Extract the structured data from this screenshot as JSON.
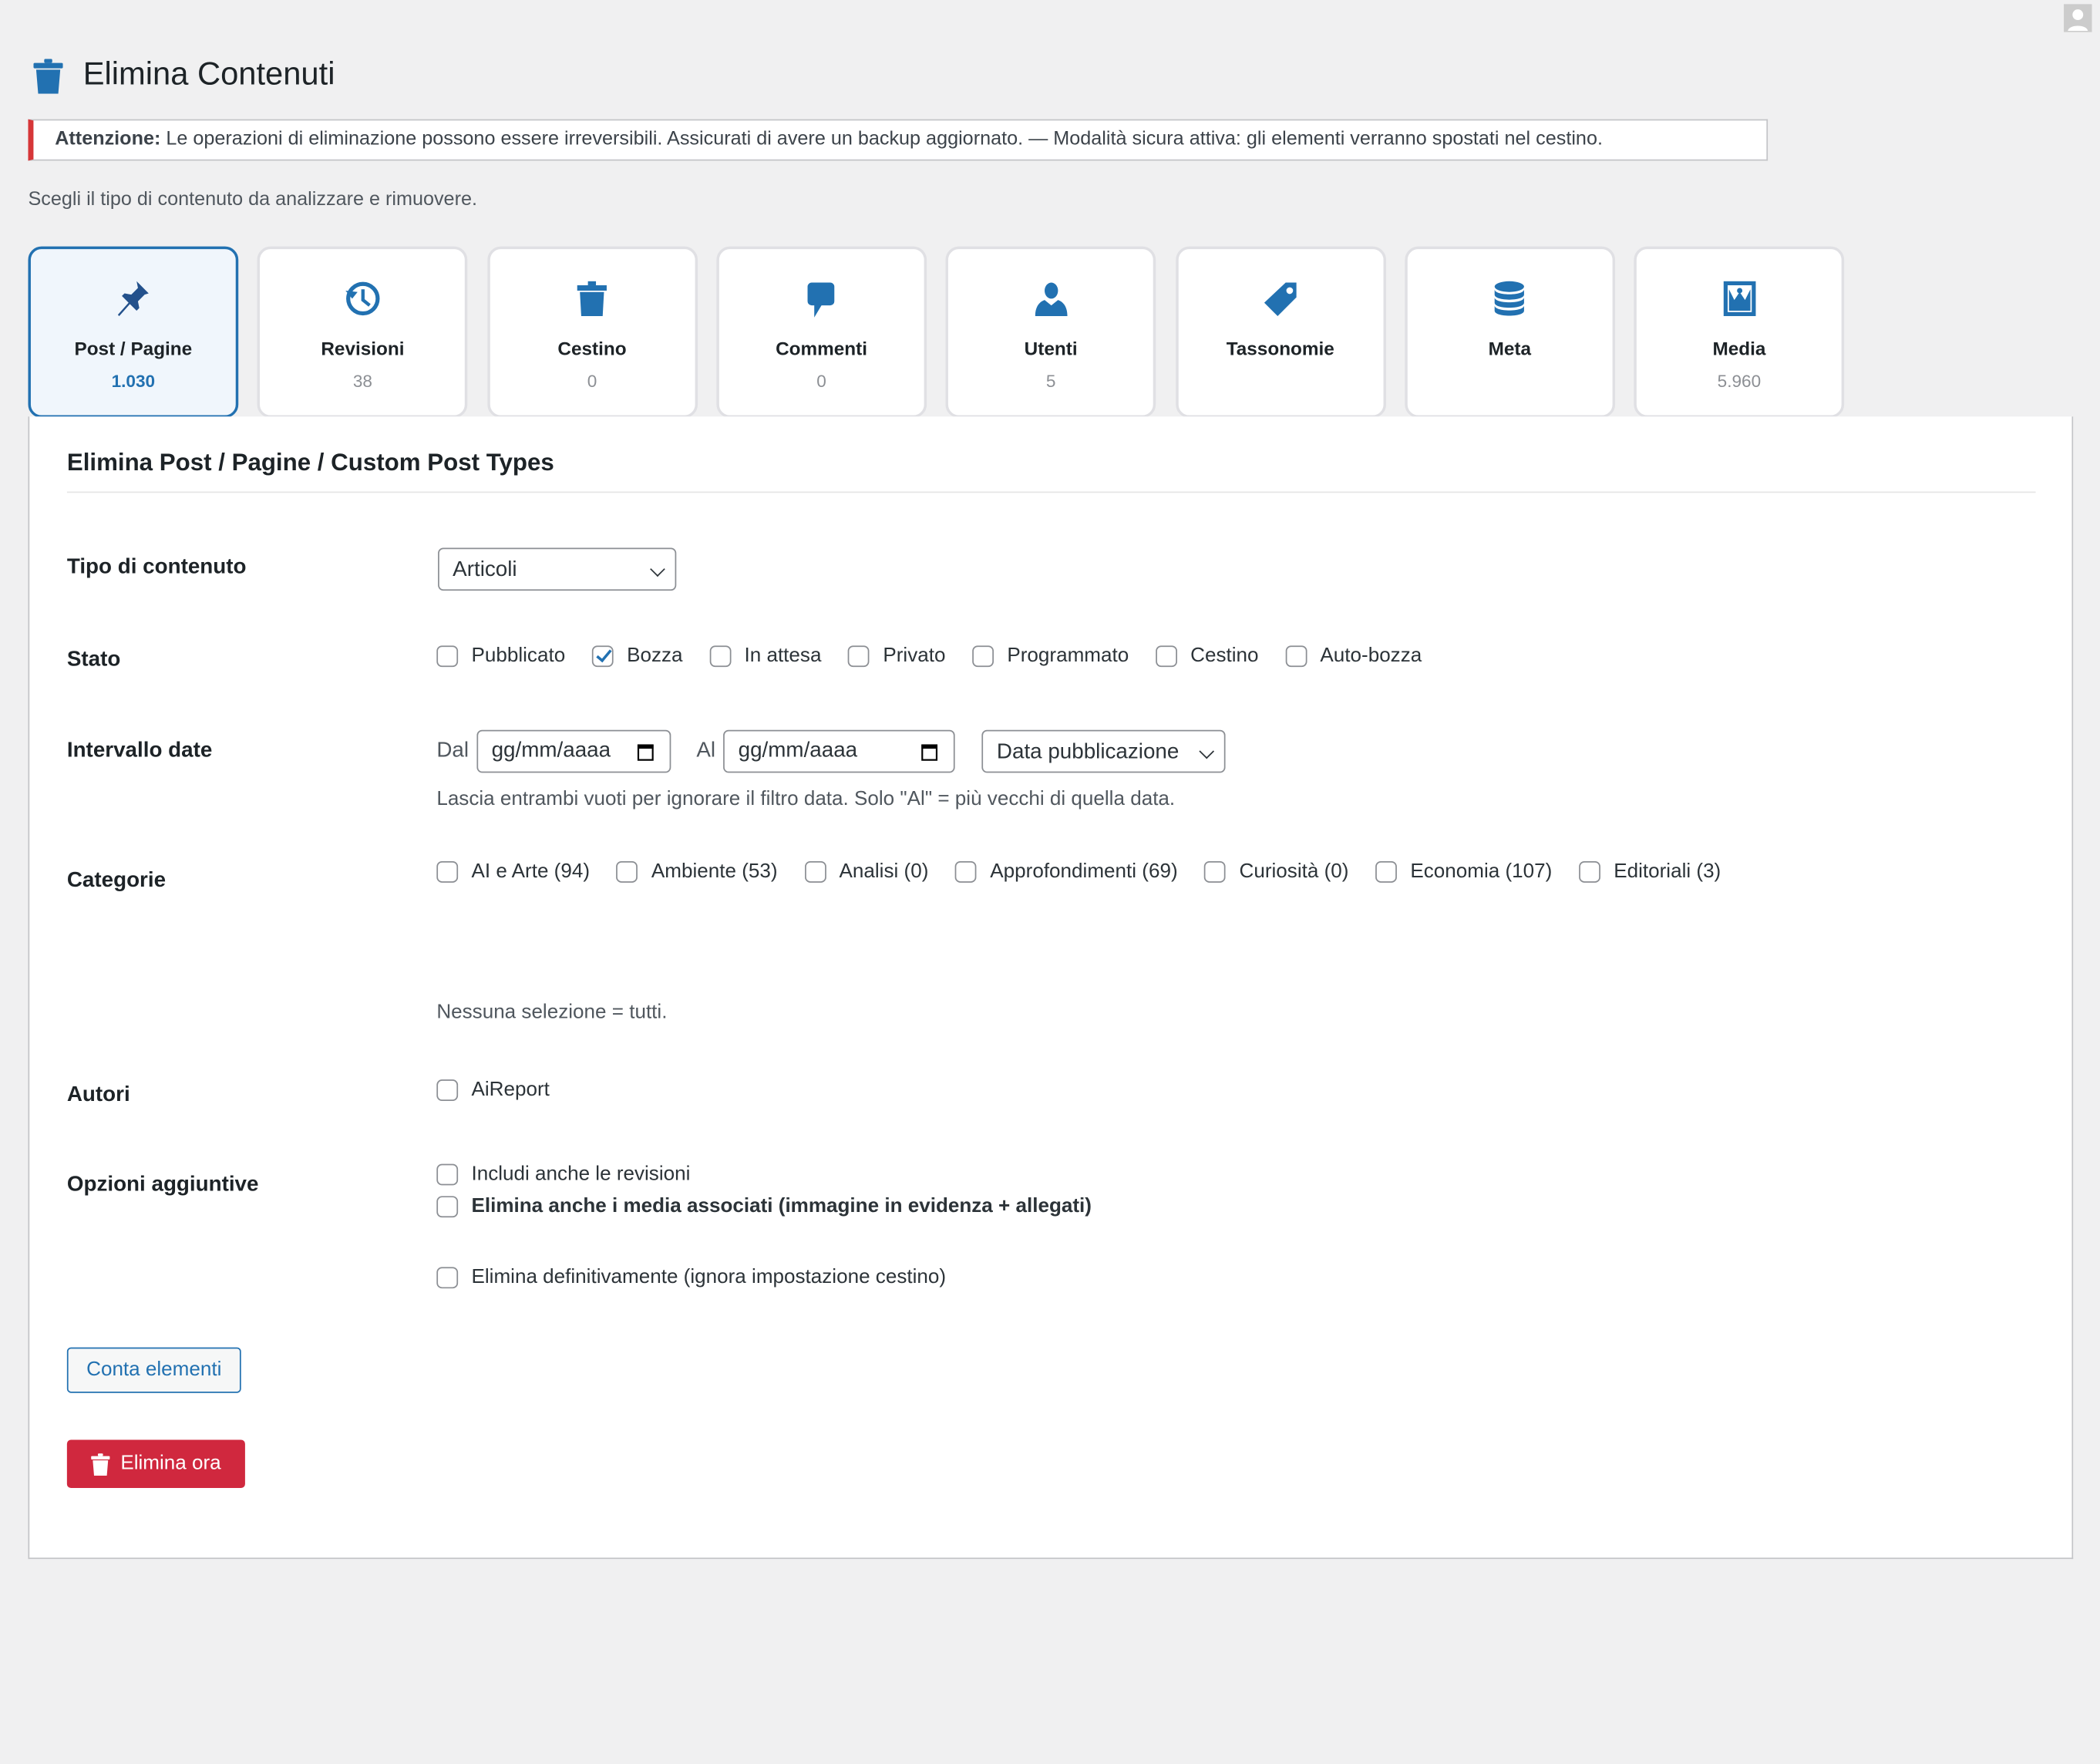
{
  "header": {
    "title": "Elimina Contenuti",
    "icon": "trash-icon"
  },
  "notice": {
    "strong": "Attenzione:",
    "text": " Le operazioni di eliminazione possono essere irreversibili. Assicurati di avere un backup aggiornato. — Modalità sicura attiva: gli elementi verranno spostati nel cestino."
  },
  "intro": "Scegli il tipo di contenuto da analizzare e rimuovere.",
  "accent": "#2271b1",
  "danger": "#d63638",
  "tabs": [
    {
      "label": "Post / Pagine",
      "count": "1.030",
      "icon": "pin-icon",
      "active": true
    },
    {
      "label": "Revisioni",
      "count": "38",
      "icon": "history-icon"
    },
    {
      "label": "Cestino",
      "count": "0",
      "icon": "trash-icon"
    },
    {
      "label": "Commenti",
      "count": "0",
      "icon": "comment-icon"
    },
    {
      "label": "Utenti",
      "count": "5",
      "icon": "user-icon"
    },
    {
      "label": "Tassonomie",
      "count": "",
      "icon": "tag-icon"
    },
    {
      "label": "Meta",
      "count": "",
      "icon": "database-icon"
    },
    {
      "label": "Media",
      "count": "5.960",
      "icon": "image-icon"
    }
  ],
  "panel": {
    "heading": "Elimina Post / Pagine / Custom Post Types",
    "type": {
      "label": "Tipo di contenuto",
      "value": "Articoli"
    },
    "status": {
      "label": "Stato",
      "options": [
        {
          "label": "Pubblicato",
          "checked": false
        },
        {
          "label": "Bozza",
          "checked": true
        },
        {
          "label": "In attesa",
          "checked": false
        },
        {
          "label": "Privato",
          "checked": false
        },
        {
          "label": "Programmato",
          "checked": false
        },
        {
          "label": "Cestino",
          "checked": false
        },
        {
          "label": "Auto-bozza",
          "checked": false
        }
      ]
    },
    "dates": {
      "label": "Intervallo date",
      "from_label": "Dal",
      "from_placeholder": "gg/mm/aaaa",
      "to_label": "Al",
      "to_placeholder": "gg/mm/aaaa",
      "field": "Data pubblicazione",
      "help": "Lascia entrambi vuoti per ignorare il filtro data. Solo \"Al\" = più vecchi di quella data."
    },
    "categories": {
      "label": "Categorie",
      "options": [
        {
          "label": "AI e Arte (94)",
          "checked": false
        },
        {
          "label": "Ambiente (53)",
          "checked": false
        },
        {
          "label": "Analisi (0)",
          "checked": false
        },
        {
          "label": "Approfondimenti (69)",
          "checked": false
        },
        {
          "label": "Curiosità (0)",
          "checked": false
        },
        {
          "label": "Economia (107)",
          "checked": false
        },
        {
          "label": "Editoriali (3)",
          "checked": false
        }
      ],
      "help": "Nessuna selezione = tutti."
    },
    "authors": {
      "label": "Autori",
      "options": [
        {
          "label": "AiReport",
          "checked": false
        }
      ]
    },
    "extra": {
      "label": "Opzioni aggiuntive",
      "revisions": "Includi anche le revisioni",
      "media": "Elimina anche i media associati (immagine in evidenza + allegati)",
      "force": "Elimina definitivamente (ignora impostazione cestino)"
    },
    "count_button": "Conta elementi",
    "delete_button": "Elimina ora"
  }
}
